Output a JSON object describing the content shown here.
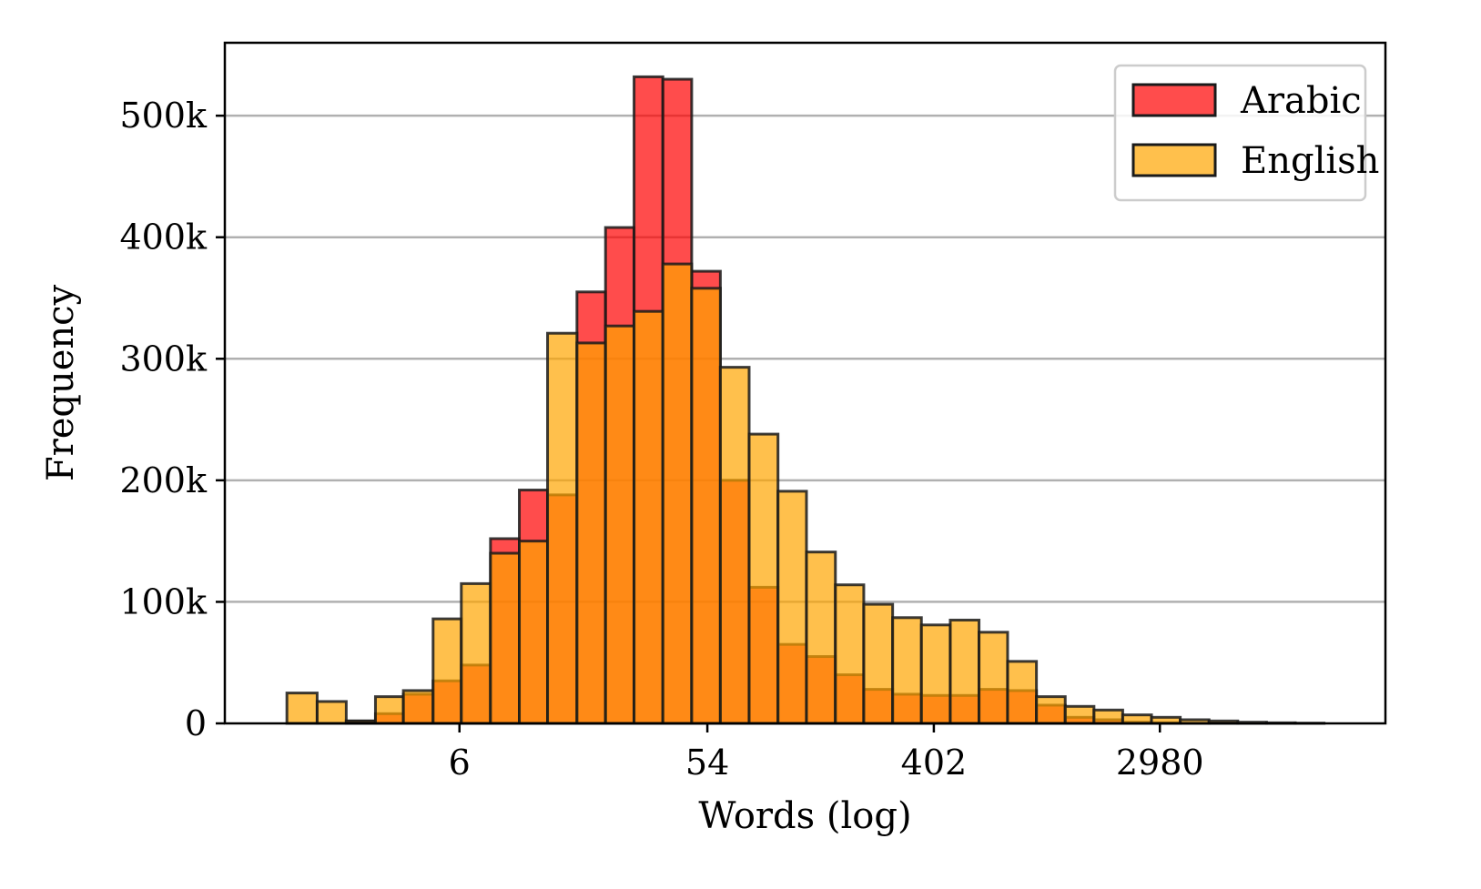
{
  "chart_data": {
    "type": "bar",
    "subtype": "overlapping-histogram",
    "title": "",
    "xlabel": "Words (log)",
    "ylabel": "Frequency",
    "x_scale": "log",
    "x_ticks": [
      6,
      54,
      402,
      2980
    ],
    "x_tick_labels": [
      "6",
      "54",
      "402",
      "2980"
    ],
    "y_ticks": [
      0,
      100000,
      200000,
      300000,
      400000,
      500000
    ],
    "y_tick_labels": [
      "0",
      "100k",
      "200k",
      "300k",
      "400k",
      "500k"
    ],
    "ylim": [
      0,
      560000
    ],
    "xlim": [
      0.75,
      22000
    ],
    "grid": "y",
    "legend_position": "top-right",
    "bin_edges": [
      1.3,
      1.7,
      2.2,
      2.85,
      3.65,
      4.75,
      6.1,
      7.9,
      10.2,
      13.1,
      17.0,
      21.9,
      28.2,
      36.4,
      47.0,
      60.6,
      78.2,
      101,
      130,
      168,
      216,
      279,
      360,
      465,
      600,
      773,
      998,
      1288,
      1662,
      2144,
      2767,
      3570,
      4607,
      5944,
      7670,
      9897,
      12770
    ],
    "series": [
      {
        "name": "Arabic",
        "color": "#ff0000",
        "opacity": 0.7,
        "values": [
          0,
          0,
          2000,
          8000,
          24000,
          35000,
          48000,
          152000,
          192000,
          188000,
          355000,
          408000,
          532000,
          530000,
          372000,
          200000,
          112000,
          65000,
          55000,
          40000,
          28000,
          24000,
          23000,
          23000,
          28000,
          27000,
          15000,
          5000,
          3000,
          1000,
          500,
          0,
          0,
          0,
          0,
          0
        ]
      },
      {
        "name": "English",
        "color": "#ffa500",
        "opacity": 0.7,
        "values": [
          25000,
          18000,
          2000,
          22000,
          27000,
          86000,
          115000,
          140000,
          150000,
          321000,
          313000,
          327000,
          339000,
          378000,
          358000,
          293000,
          238000,
          191000,
          141000,
          114000,
          98000,
          87000,
          81000,
          85000,
          75000,
          51000,
          22000,
          14000,
          11000,
          7000,
          5000,
          3000,
          2000,
          1000,
          500,
          200
        ]
      }
    ]
  }
}
